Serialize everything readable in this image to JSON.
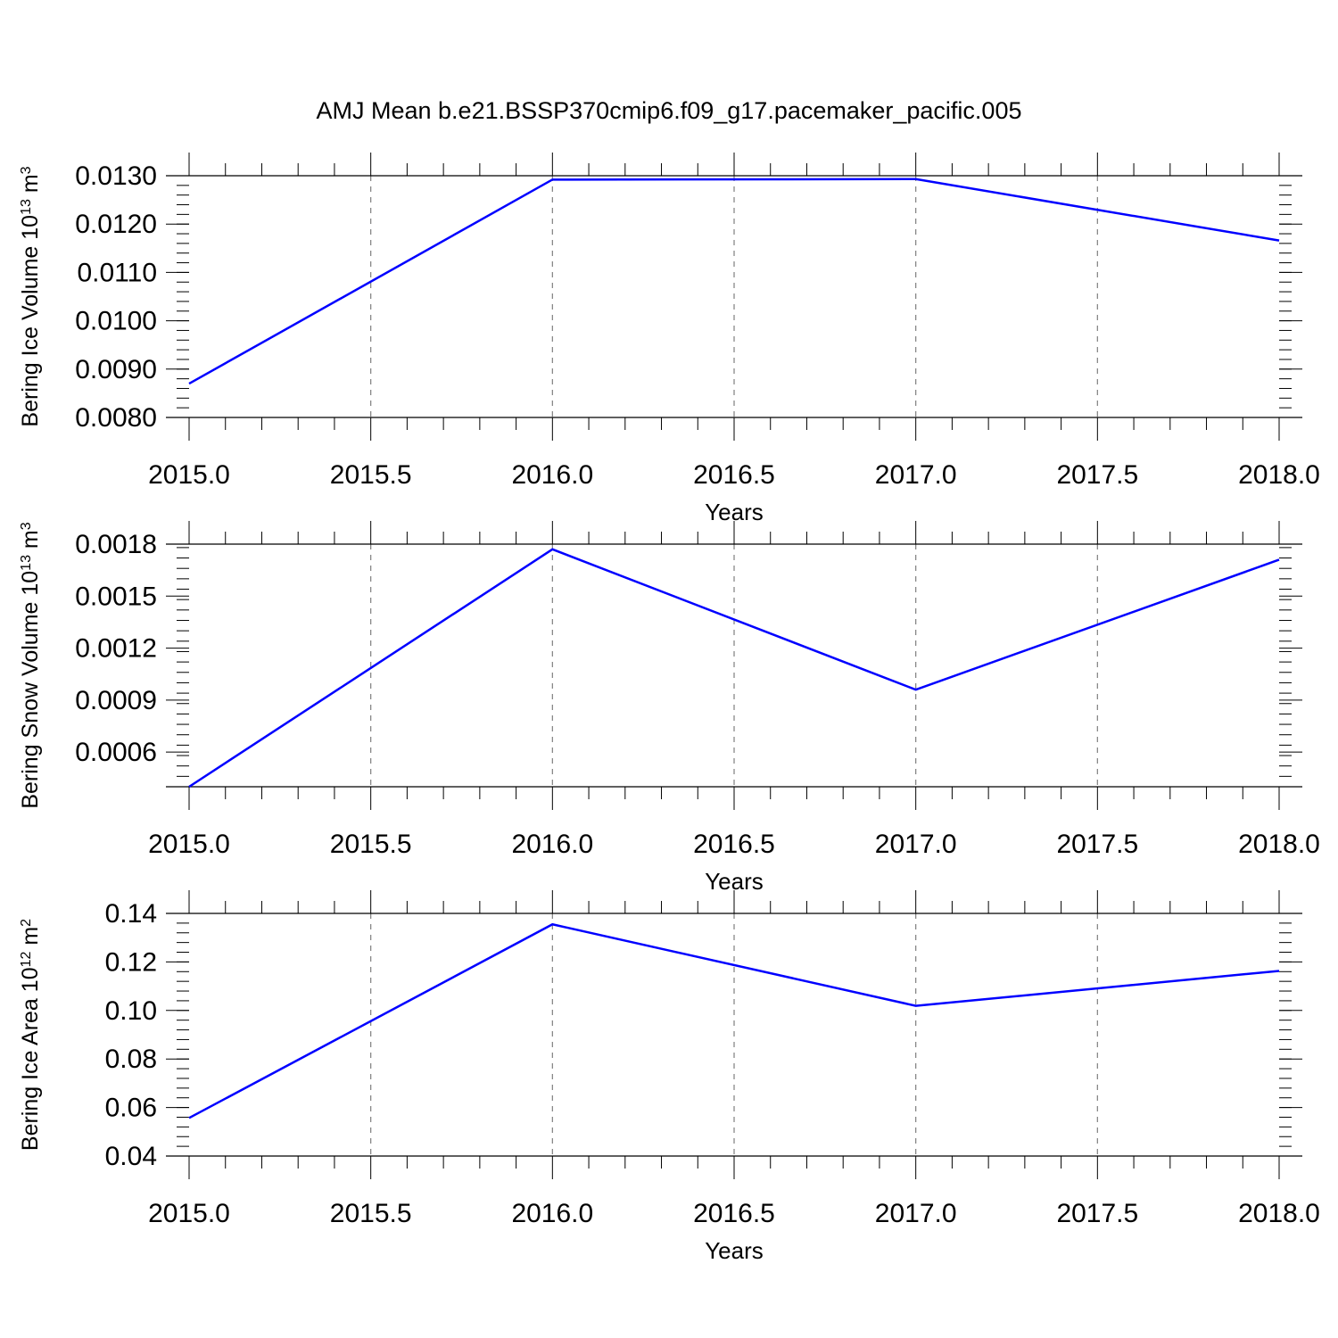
{
  "figure": {
    "title": "AMJ Mean b.e21.BSSP370cmip6.f09_g17.pacemaker_pacific.005",
    "line_color": "#0000ff",
    "grid_color": "#7f7f7f"
  },
  "chart_data": [
    {
      "type": "line",
      "title": "AMJ Mean b.e21.BSSP370cmip6.f09_g17.pacemaker_pacific.005",
      "xlabel": "Years",
      "ylabel": {
        "base": "Bering Ice Volume 10",
        "exp": "13",
        "unit": " m",
        "unit_exp": "3"
      },
      "x": [
        2015,
        2016,
        2017,
        2018
      ],
      "series": [
        {
          "values": [
            0.0087,
            0.01292,
            0.01293,
            0.01166
          ]
        }
      ],
      "xlim": [
        2015,
        2018
      ],
      "ylim": [
        0.008,
        0.013
      ],
      "xticks": [
        "2015.0",
        "2015.5",
        "2016.0",
        "2016.5",
        "2017.0",
        "2017.5",
        "2018.0"
      ],
      "yticks": [
        "0.0080",
        "0.0090",
        "0.0100",
        "0.0110",
        "0.0120",
        "0.0130"
      ],
      "ytick_values": [
        0.008,
        0.009,
        0.01,
        0.011,
        0.012,
        0.013
      ],
      "grid": "vertical dashed"
    },
    {
      "type": "line",
      "xlabel": "Years",
      "ylabel": {
        "base": "Bering Snow Volume 10",
        "exp": "13",
        "unit": " m",
        "unit_exp": "3"
      },
      "x": [
        2015,
        2016,
        2017,
        2018
      ],
      "series": [
        {
          "values": [
            0.0004,
            0.00177,
            0.00096,
            0.00171
          ]
        }
      ],
      "xlim": [
        2015,
        2018
      ],
      "ylim": [
        0.0004,
        0.0018
      ],
      "xticks": [
        "2015.0",
        "2015.5",
        "2016.0",
        "2016.5",
        "2017.0",
        "2017.5",
        "2018.0"
      ],
      "yticks": [
        "0.0006",
        "0.0009",
        "0.0012",
        "0.0015",
        "0.0018"
      ],
      "ytick_values": [
        0.0006,
        0.0009,
        0.0012,
        0.0015,
        0.0018
      ],
      "grid": "vertical dashed"
    },
    {
      "type": "line",
      "xlabel": "Years",
      "ylabel": {
        "base": "Bering Ice Area 10",
        "exp": "12",
        "unit": " m",
        "unit_exp": "2"
      },
      "x": [
        2015,
        2016,
        2017,
        2018
      ],
      "series": [
        {
          "values": [
            0.0557,
            0.1355,
            0.1019,
            0.1163
          ]
        }
      ],
      "xlim": [
        2015,
        2018
      ],
      "ylim": [
        0.04,
        0.14
      ],
      "xticks": [
        "2015.0",
        "2015.5",
        "2016.0",
        "2016.5",
        "2017.0",
        "2017.5",
        "2018.0"
      ],
      "yticks": [
        "0.04",
        "0.06",
        "0.08",
        "0.10",
        "0.12",
        "0.14"
      ],
      "ytick_values": [
        0.04,
        0.06,
        0.08,
        0.1,
        0.12,
        0.14
      ],
      "grid": "vertical dashed"
    }
  ]
}
